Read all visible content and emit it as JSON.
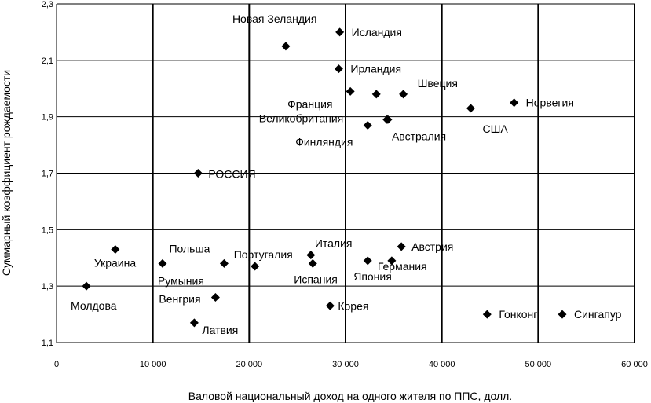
{
  "chart_data": {
    "type": "scatter",
    "xlabel": "Валовой национальный доход на одного жителя по ППС, долл.",
    "ylabel": "Суммарный коэффициент рождаемости",
    "xlim": [
      0,
      60000
    ],
    "ylim": [
      1.1,
      2.3
    ],
    "x_ticks": [
      0,
      10000,
      20000,
      30000,
      40000,
      50000,
      60000
    ],
    "x_tick_labels": [
      "0",
      "10 000",
      "20 000",
      "30 000",
      "40 000",
      "50 000",
      "60 000"
    ],
    "y_ticks": [
      1.1,
      1.3,
      1.5,
      1.7,
      1.9,
      2.1,
      2.3
    ],
    "y_tick_labels": [
      "1,1",
      "1,3",
      "1,5",
      "1,7",
      "1,9",
      "2,1",
      "2,3"
    ],
    "grid": "both",
    "marker": "diamond",
    "marker_color": "#000000",
    "points": [
      {
        "label": "Новая Зеландия",
        "x": 23800,
        "y": 2.15
      },
      {
        "label": "Исландия",
        "x": 29400,
        "y": 2.2
      },
      {
        "label": "Ирландия",
        "x": 29300,
        "y": 2.07
      },
      {
        "label": "Франция",
        "x": 30500,
        "y": 1.99
      },
      {
        "label": "",
        "x": 33200,
        "y": 1.98
      },
      {
        "label": "Швеция",
        "x": 36000,
        "y": 1.98
      },
      {
        "label": "Великобритания",
        "x": 34300,
        "y": 1.89
      },
      {
        "label": "Финляндия",
        "x": 32300,
        "y": 1.87
      },
      {
        "label": "Австралия",
        "x": 34400,
        "y": 1.89
      },
      {
        "label": "США",
        "x": 43000,
        "y": 1.93
      },
      {
        "label": "Норвегия",
        "x": 47500,
        "y": 1.95
      },
      {
        "label": "РОССИЯ",
        "x": 14700,
        "y": 1.7
      },
      {
        "label": "Украина",
        "x": 6100,
        "y": 1.43
      },
      {
        "label": "Молдова",
        "x": 3100,
        "y": 1.3
      },
      {
        "label": "Польша",
        "x": 17400,
        "y": 1.38
      },
      {
        "label": "Румыния",
        "x": 11000,
        "y": 1.38
      },
      {
        "label": "Португалия",
        "x": 20600,
        "y": 1.37
      },
      {
        "label": "Венгрия",
        "x": 16500,
        "y": 1.26
      },
      {
        "label": "Латвия",
        "x": 14300,
        "y": 1.17
      },
      {
        "label": "Италия",
        "x": 26400,
        "y": 1.41
      },
      {
        "label": "Испания",
        "x": 26600,
        "y": 1.38
      },
      {
        "label": "Япония",
        "x": 32300,
        "y": 1.39
      },
      {
        "label": "Германия",
        "x": 34800,
        "y": 1.39
      },
      {
        "label": "Австрия",
        "x": 35800,
        "y": 1.44
      },
      {
        "label": "Корея",
        "x": 28400,
        "y": 1.23
      },
      {
        "label": "Гонконг",
        "x": 44700,
        "y": 1.2
      },
      {
        "label": "Сингапур",
        "x": 52500,
        "y": 1.2
      }
    ]
  }
}
